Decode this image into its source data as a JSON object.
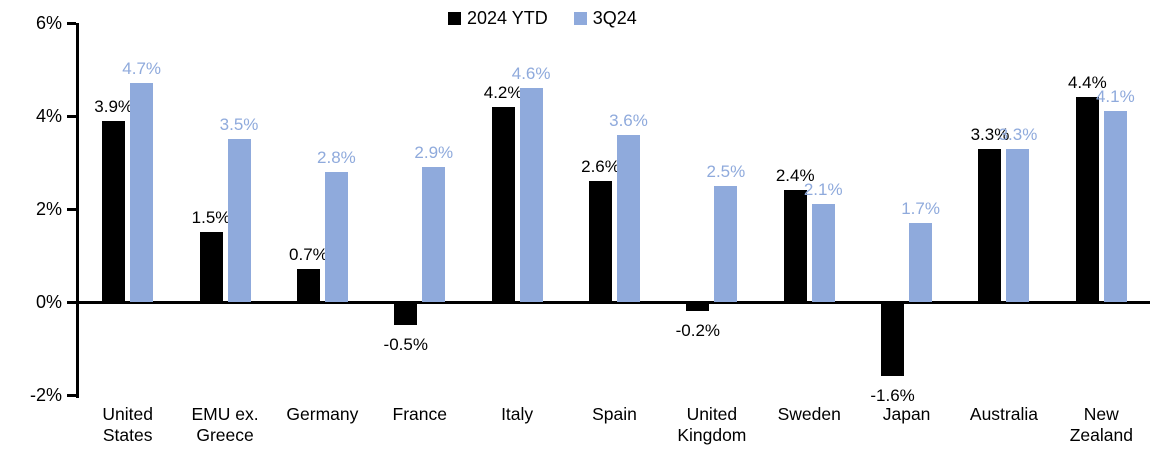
{
  "chart_data": {
    "type": "bar",
    "title": "",
    "categories": [
      "United States",
      "EMU ex. Greece",
      "Germany",
      "France",
      "Italy",
      "Spain",
      "United Kingdom",
      "Sweden",
      "Japan",
      "Australia",
      "New Zealand"
    ],
    "series": [
      {
        "name": "2024 YTD",
        "color": "#000000",
        "values": [
          3.9,
          1.5,
          0.7,
          -0.5,
          4.2,
          2.6,
          -0.2,
          2.4,
          -1.6,
          3.3,
          4.4
        ],
        "labels": [
          "3.9%",
          "1.5%",
          "0.7%",
          "-0.5%",
          "4.2%",
          "2.6%",
          "-0.2%",
          "2.4%",
          "-1.6%",
          "3.3%",
          "4.4%"
        ]
      },
      {
        "name": "3Q24",
        "color": "#8FAADC",
        "values": [
          4.7,
          3.5,
          2.8,
          2.9,
          4.6,
          3.6,
          2.5,
          2.1,
          1.7,
          3.3,
          4.1
        ],
        "labels": [
          "4.7%",
          "3.5%",
          "2.8%",
          "2.9%",
          "4.6%",
          "3.6%",
          "2.5%",
          "2.1%",
          "1.7%",
          "3.3%",
          "4.1%"
        ]
      }
    ],
    "ylim": [
      -2,
      6
    ],
    "yticks": [
      {
        "value": 6,
        "label": "6%"
      },
      {
        "value": 4,
        "label": "4%"
      },
      {
        "value": 2,
        "label": "2%"
      },
      {
        "value": 0,
        "label": "0%"
      },
      {
        "value": -2,
        "label": "-2%"
      }
    ],
    "grid": false,
    "legend_position": "top-center",
    "colors": {
      "series1": "#000000",
      "series2": "#8FAADC",
      "axis": "#000000",
      "background": "#FFFFFF"
    }
  }
}
